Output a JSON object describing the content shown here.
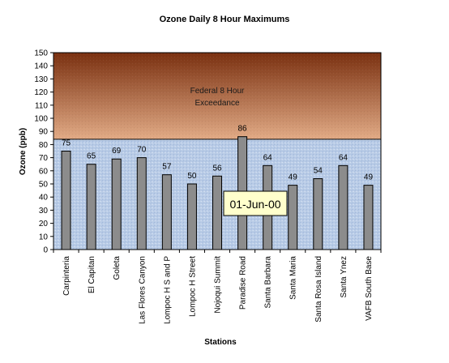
{
  "chart_data": {
    "type": "bar",
    "title": "Ozone Daily 8 Hour Maximums",
    "xlabel": "Stations",
    "ylabel": "Ozone (ppb)",
    "ylim": [
      0,
      150
    ],
    "ytick_step": 10,
    "categories": [
      "Carpinteria",
      "El Capitan",
      "Goleta",
      "Las Flores Canyon",
      "Lompoc H S and P",
      "Lompoc H Street",
      "Nojoqui Summit",
      "Paradise Road",
      "Santa Barbara",
      "Santa Maria",
      "Santa Rosa Island",
      "Santa Ynez",
      "VAFB South Base"
    ],
    "values": [
      75,
      65,
      69,
      70,
      57,
      50,
      56,
      86,
      64,
      49,
      54,
      64,
      49
    ],
    "threshold": {
      "value": 84,
      "label_line1": "Federal 8 Hour",
      "label_line2": "Exceedance"
    },
    "date_label": "01-Jun-00",
    "colors": {
      "bar": "#8c8c8c",
      "normal_band": "#b8cbe6",
      "exceedance_top": "#7a3010",
      "exceedance_bottom": "#e2ab86",
      "date_box": "#ffffcc"
    },
    "grid": false,
    "legend": "none"
  }
}
